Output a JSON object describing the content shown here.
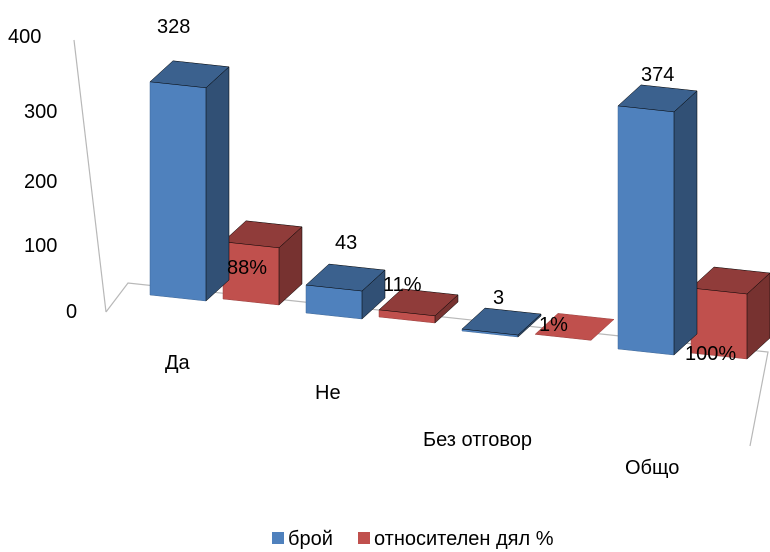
{
  "chart_data": {
    "type": "bar",
    "categories": [
      "Да",
      "Не",
      "Без отговор",
      "Общо"
    ],
    "series": [
      {
        "name": "брой",
        "values": [
          328,
          43,
          3,
          374
        ],
        "labels": [
          "328",
          "43",
          "3",
          "374"
        ],
        "color": "#4F81BD"
      },
      {
        "name": "относителен дял %",
        "values": [
          88,
          11,
          1,
          100
        ],
        "labels": [
          "88%",
          "11%",
          "1%",
          "100%"
        ],
        "color": "#C0504D"
      }
    ],
    "yticks": [
      "400",
      "300",
      "200",
      "100",
      "0"
    ],
    "ylim": [
      0,
      400
    ],
    "grid": false,
    "legend_position": "bottom"
  }
}
